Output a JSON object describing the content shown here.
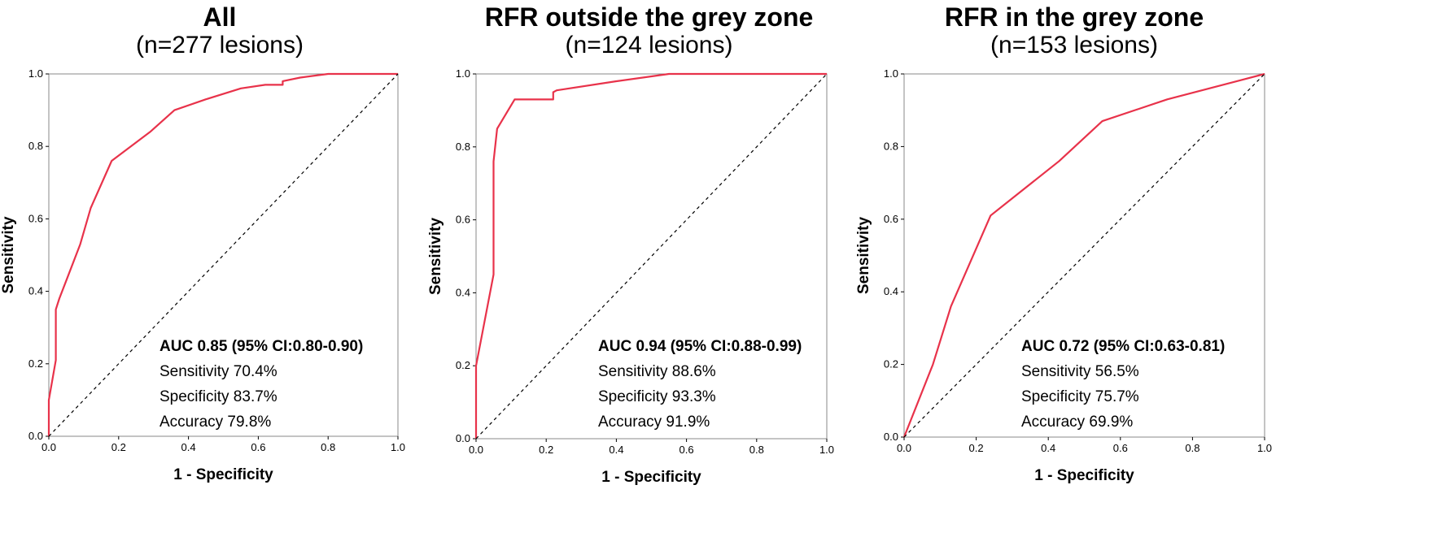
{
  "chart_data": [
    {
      "type": "line",
      "title": "All",
      "subtitle": "(n=277 lesions)",
      "xlabel": "1 - Specificity",
      "ylabel": "Sensitivity",
      "xlim": [
        0,
        1
      ],
      "ylim": [
        0,
        1
      ],
      "xticks": [
        "0.0",
        "0.2",
        "0.4",
        "0.6",
        "0.8",
        "1.0"
      ],
      "yticks": [
        "0.0",
        "0.2",
        "0.4",
        "0.6",
        "0.8",
        "1.0"
      ],
      "grid": false,
      "series": [
        {
          "color": "#e8324a",
          "x": [
            0,
            0,
            0.02,
            0.02,
            0.03,
            0.05,
            0.09,
            0.12,
            0.18,
            0.29,
            0.36,
            0.45,
            0.55,
            0.62,
            0.67,
            0.67,
            0.72,
            0.8,
            1.0
          ],
          "y": [
            0,
            0.1,
            0.21,
            0.35,
            0.38,
            0.43,
            0.53,
            0.63,
            0.76,
            0.84,
            0.9,
            0.93,
            0.96,
            0.97,
            0.97,
            0.98,
            0.99,
            1.0,
            1.0
          ]
        },
        {
          "color": "#000000",
          "style": "dashed",
          "x": [
            0,
            1
          ],
          "y": [
            0,
            1
          ]
        }
      ],
      "annotations": {
        "auc": "AUC 0.85 (95% CI:0.80-0.90)",
        "sensitivity": "Sensitivity 70.4%",
        "specificity": "Specificity 83.7%",
        "accuracy": "Accuracy 79.8%"
      }
    },
    {
      "type": "line",
      "title": "RFR outside the grey zone",
      "subtitle": "(n=124 lesions)",
      "xlabel": "1 - Specificity",
      "ylabel": "Sensitivity",
      "xlim": [
        0,
        1
      ],
      "ylim": [
        0,
        1
      ],
      "xticks": [
        "0.0",
        "0.2",
        "0.4",
        "0.6",
        "0.8",
        "1.0"
      ],
      "yticks": [
        "0.0",
        "0.2",
        "0.4",
        "0.6",
        "0.8",
        "1.0"
      ],
      "grid": false,
      "series": [
        {
          "color": "#e8324a",
          "x": [
            0,
            0,
            0.02,
            0.05,
            0.05,
            0.06,
            0.11,
            0.22,
            0.22,
            0.23,
            0.4,
            0.55,
            1.0
          ],
          "y": [
            0,
            0.2,
            0.3,
            0.45,
            0.76,
            0.85,
            0.93,
            0.93,
            0.95,
            0.955,
            0.98,
            1.0,
            1.0
          ]
        },
        {
          "color": "#000000",
          "style": "dashed",
          "x": [
            0,
            1
          ],
          "y": [
            0,
            1
          ]
        }
      ],
      "annotations": {
        "auc": "AUC 0.94 (95% CI:0.88-0.99)",
        "sensitivity": "Sensitivity 88.6%",
        "specificity": "Specificity 93.3%",
        "accuracy": "Accuracy 91.9%"
      }
    },
    {
      "type": "line",
      "title": "RFR in the grey zone",
      "subtitle": "(n=153 lesions)",
      "xlabel": "1 - Specificity",
      "ylabel": "Sensitivity",
      "xlim": [
        0,
        1
      ],
      "ylim": [
        0,
        1
      ],
      "xticks": [
        "0.0",
        "0.2",
        "0.4",
        "0.6",
        "0.8",
        "1.0"
      ],
      "yticks": [
        "0.0",
        "0.2",
        "0.4",
        "0.6",
        "0.8",
        "1.0"
      ],
      "grid": false,
      "series": [
        {
          "color": "#e8324a",
          "x": [
            0,
            0.08,
            0.13,
            0.24,
            0.43,
            0.55,
            0.73,
            1.0
          ],
          "y": [
            0,
            0.2,
            0.36,
            0.61,
            0.76,
            0.87,
            0.93,
            1.0
          ]
        },
        {
          "color": "#000000",
          "style": "dashed",
          "x": [
            0,
            1
          ],
          "y": [
            0,
            1
          ]
        }
      ],
      "annotations": {
        "auc": "AUC 0.72 (95% CI:0.63-0.81)",
        "sensitivity": "Sensitivity 56.5%",
        "specificity": "Specificity 75.7%",
        "accuracy": "Accuracy 69.9%"
      }
    }
  ]
}
